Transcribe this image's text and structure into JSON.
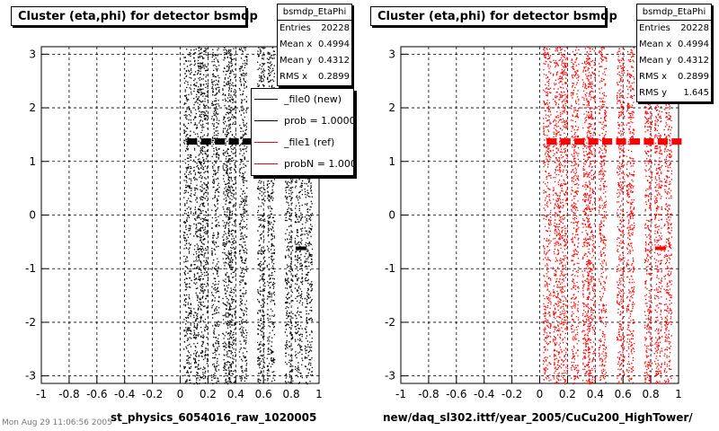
{
  "footer_text": "Mon Aug 29 11:06:56 2005",
  "chart_data": [
    {
      "type": "scatter",
      "title": "Cluster (eta,phi) for detector bsmdp",
      "xlabel": "st_physics_6054016_raw_1020005",
      "ylabel": "",
      "xlim": [
        -1,
        1
      ],
      "ylim": [
        -3.14,
        3.14
      ],
      "x_ticks": [
        "-1",
        "-0.8",
        "-0.6",
        "-0.4",
        "-0.2",
        "0",
        "0.2",
        "0.4",
        "0.6",
        "0.8",
        "1"
      ],
      "y_ticks": [
        "-3",
        "-2",
        "-1",
        "0",
        "1",
        "2",
        "3"
      ],
      "grid": true,
      "marker_color": "#000000",
      "x_columns": [
        0.05,
        0.12,
        0.17,
        0.25,
        0.33,
        0.37,
        0.45,
        0.58,
        0.65,
        0.78,
        0.85,
        0.92
      ],
      "hot_band": {
        "x_from": 0.05,
        "x_to": 0.45,
        "y": 1.38
      },
      "hot_spots": [
        {
          "x": 0.87,
          "y": -0.62
        }
      ],
      "stats": {
        "name": "bsmdp_EtaPhi",
        "rows": [
          {
            "label": "Entries",
            "value": "20228"
          },
          {
            "label": "Mean x",
            "value": "0.4994"
          },
          {
            "label": "Mean y",
            "value": "0.4312"
          },
          {
            "label": "RMS x",
            "value": "0.2899"
          }
        ]
      },
      "legend": {
        "placement": "top-right",
        "entries": [
          {
            "label": "_file0 (new)",
            "color": "#000000"
          },
          {
            "label": "prob = 1.000000",
            "color": "#000000"
          },
          {
            "label": "_file1 (ref)",
            "color": "#ff0000"
          },
          {
            "label": "probN = 1.000000",
            "color": "#ff0000"
          }
        ]
      }
    },
    {
      "type": "scatter",
      "title": "Cluster (eta,phi) for detector bsmdp",
      "xlabel": "new/daq_sl302.ittf/year_2005/CuCu200_HighTower/",
      "ylabel": "",
      "xlim": [
        -1,
        1
      ],
      "ylim": [
        -3.14,
        3.14
      ],
      "x_ticks": [
        "-1",
        "-0.8",
        "-0.6",
        "-0.4",
        "-0.2",
        "0",
        "0.2",
        "0.4",
        "0.6",
        "0.8",
        "1"
      ],
      "y_ticks": [
        "-3",
        "-2",
        "-1",
        "0",
        "1",
        "2",
        "3"
      ],
      "grid": true,
      "marker_color": "#ff0000",
      "x_columns": [
        0.05,
        0.12,
        0.17,
        0.25,
        0.33,
        0.37,
        0.45,
        0.58,
        0.65,
        0.78,
        0.85,
        0.92
      ],
      "hot_band": {
        "x_from": 0.05,
        "x_to": 0.95,
        "y": 1.38
      },
      "hot_spots": [
        {
          "x": 0.87,
          "y": -0.62
        }
      ],
      "stats": {
        "name": "bsmdp_EtaPhi",
        "rows": [
          {
            "label": "Entries",
            "value": "20228"
          },
          {
            "label": "Mean x",
            "value": "0.4994"
          },
          {
            "label": "Mean y",
            "value": "0.4312"
          },
          {
            "label": "RMS x",
            "value": "0.2899"
          },
          {
            "label": "RMS y",
            "value": "1.645"
          }
        ]
      }
    }
  ]
}
